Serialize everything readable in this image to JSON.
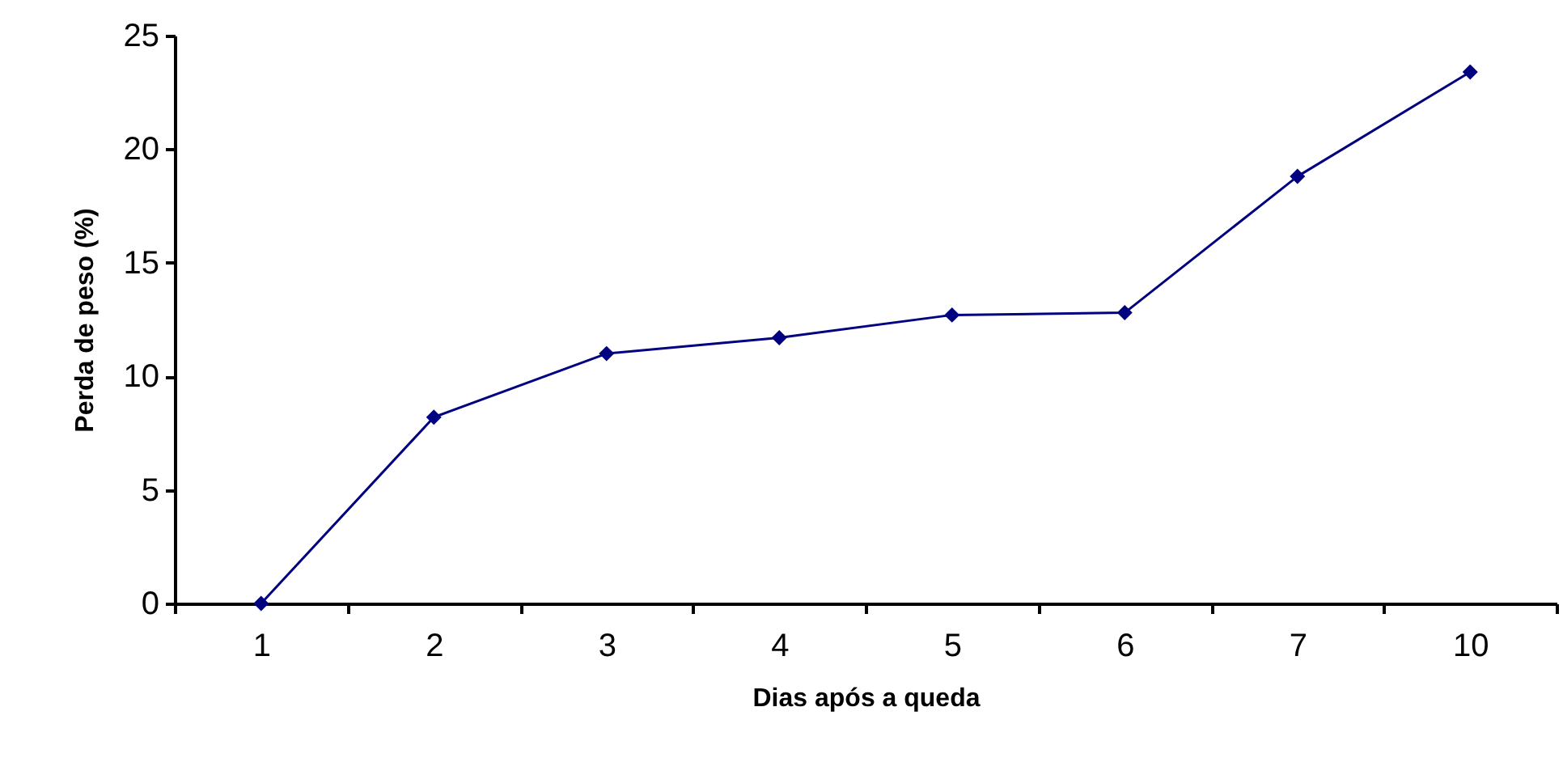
{
  "chart_data": {
    "type": "line",
    "xlabel": "Dias após a queda",
    "ylabel": "Perda de peso (%)",
    "categories": [
      "1",
      "2",
      "3",
      "4",
      "5",
      "6",
      "7",
      "10"
    ],
    "series": [
      {
        "color": "#000080",
        "values": [
          0,
          8.2,
          11.0,
          11.7,
          12.7,
          12.8,
          18.8,
          23.4
        ]
      }
    ],
    "ylim": [
      0,
      25
    ],
    "yticks": [
      0,
      5,
      10,
      15,
      20,
      25
    ],
    "grid": false,
    "legend": false,
    "marker": "diamond",
    "line_style": "solid"
  }
}
